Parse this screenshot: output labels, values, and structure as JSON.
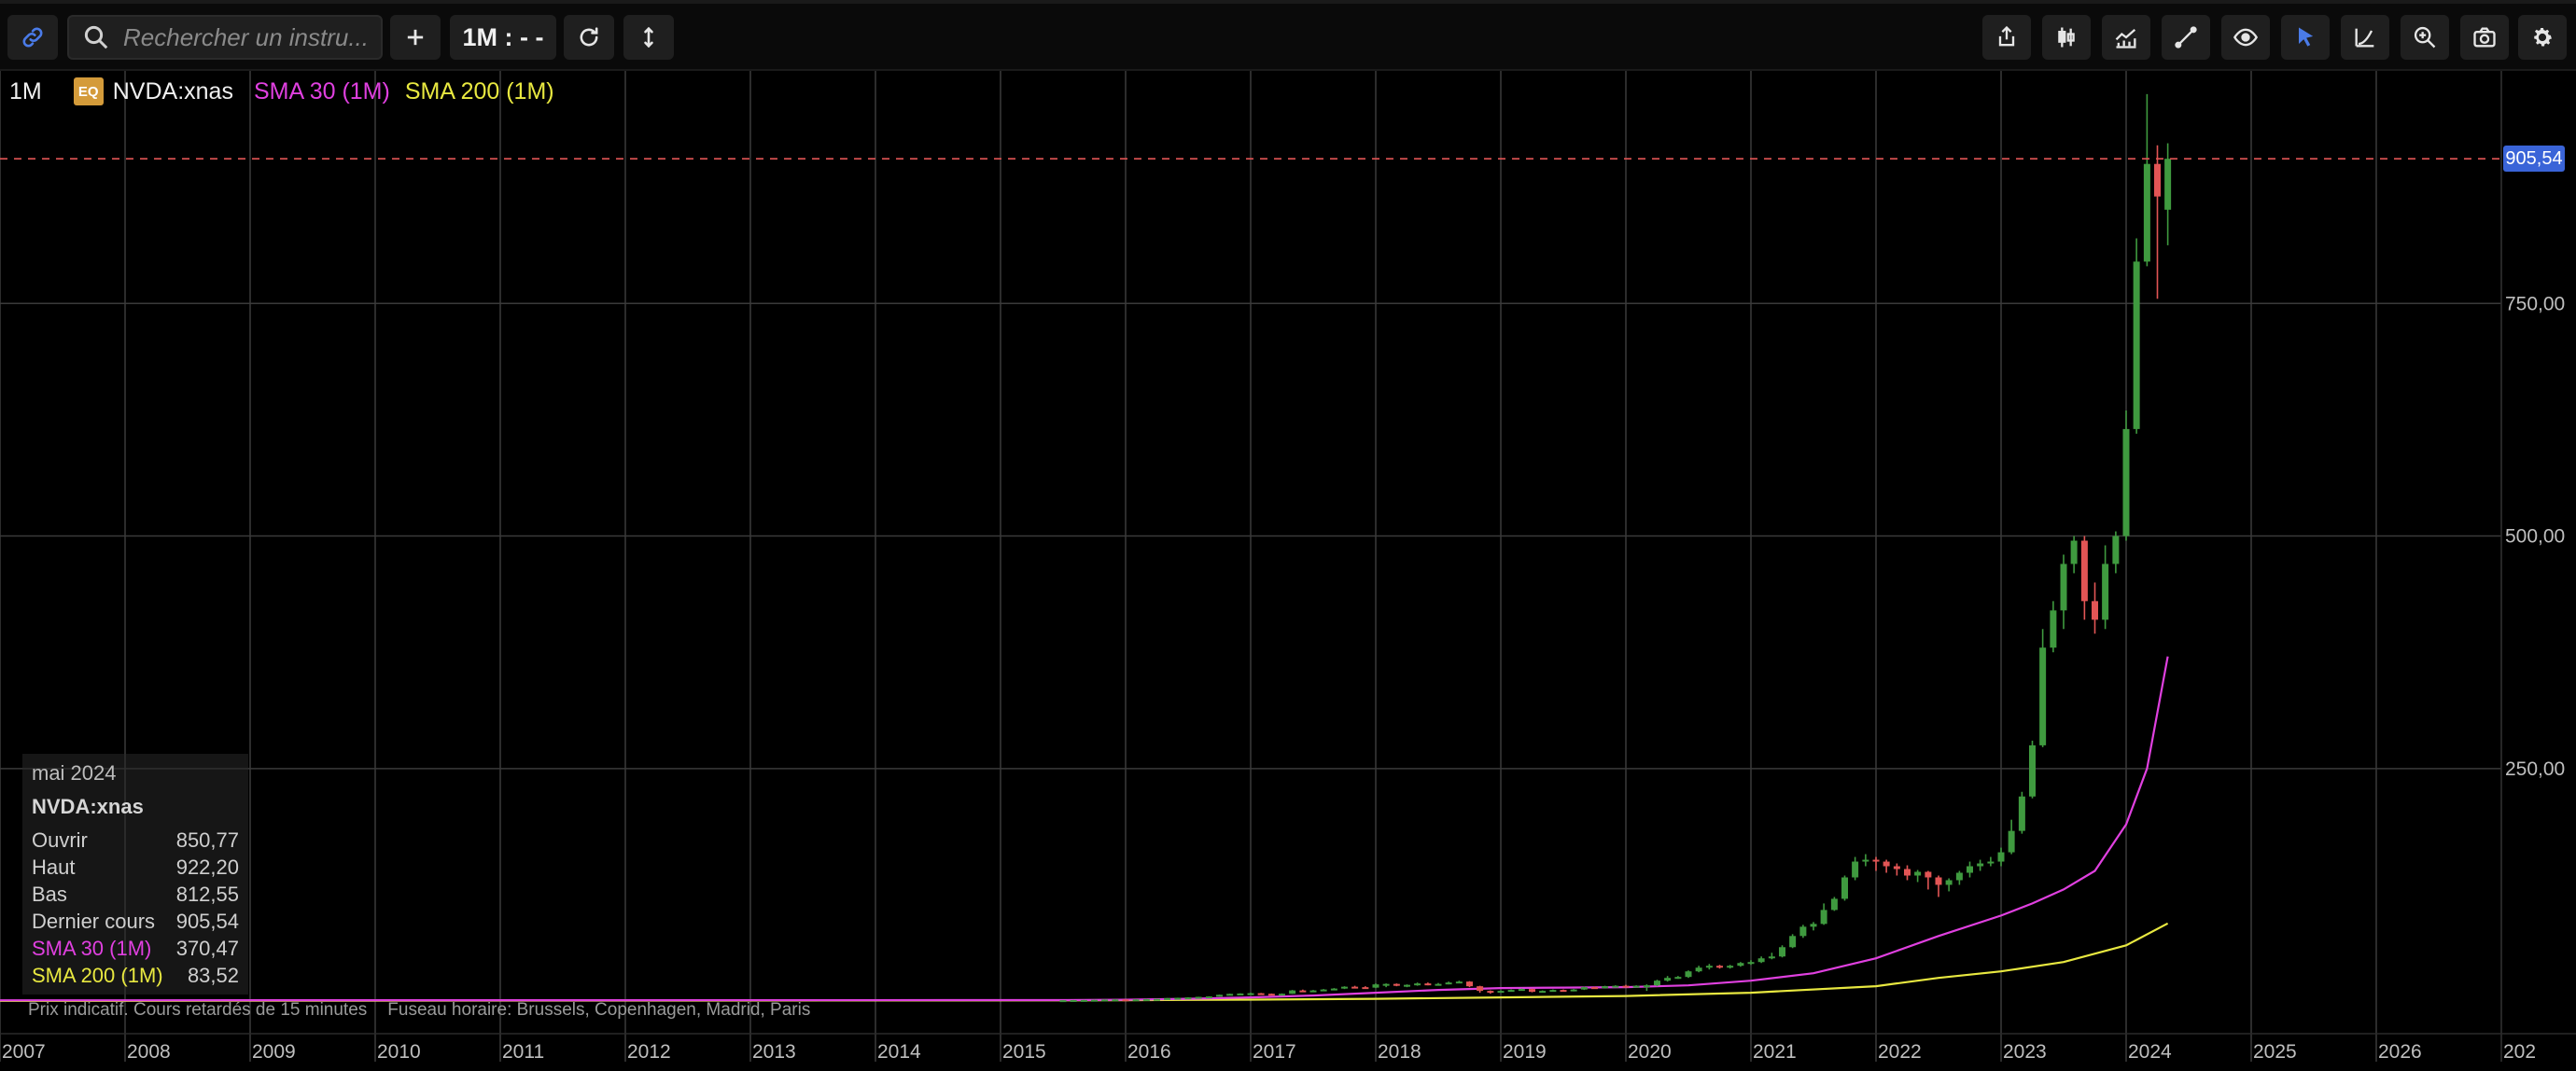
{
  "toolbar": {
    "search_placeholder": "Rechercher un instru...",
    "timeframe_label": "1M : - -",
    "add_label": "+"
  },
  "legend": {
    "timeframe": "1M",
    "badge": "EQ",
    "symbol": "NVDA:xnas",
    "sma30": "SMA 30 (1M)",
    "sma200": "SMA 200 (1M)"
  },
  "info": {
    "month": "mai 2024",
    "symbol": "NVDA:xnas",
    "rows": [
      {
        "label": "Ouvrir",
        "value": "850,77"
      },
      {
        "label": "Haut",
        "value": "922,20"
      },
      {
        "label": "Bas",
        "value": "812,55"
      },
      {
        "label": "Dernier cours",
        "value": "905,54"
      }
    ],
    "sma30": {
      "label": "SMA 30 (1M)",
      "value": "370,47"
    },
    "sma200": {
      "label": "SMA 200 (1M)",
      "value": "83,52"
    }
  },
  "footer": {
    "note": "Prix indicatif. Cours retardés de 15 minutes",
    "timezone": "Fuseau horaire: Brussels, Copenhagen, Madrid, Paris"
  },
  "colors": {
    "up": "#3f9a3f",
    "down": "#e25555",
    "sma30": "#e040e0",
    "sma200": "#e8e840",
    "last": "#3a64d8"
  },
  "chart_data": {
    "type": "candlestick",
    "x_range": [
      2007.0,
      2027.0
    ],
    "ylim": [
      -35,
      1000
    ],
    "x_tick_labels": [
      "2007",
      "2008",
      "2009",
      "2010",
      "2011",
      "2012",
      "2013",
      "2014",
      "2015",
      "2016",
      "2017",
      "2018",
      "2019",
      "2020",
      "2021",
      "2022",
      "2023",
      "2024",
      "2025",
      "2026",
      "202"
    ],
    "y_ticks": [
      250,
      500,
      750
    ],
    "y_tick_labels": [
      "250,00",
      "500,00",
      "750,00"
    ],
    "last_price": 905.54,
    "last_price_label": "905,54",
    "candles": [
      [
        2015.5,
        1,
        1,
        0.8,
        1.1
      ],
      [
        2015.583,
        1,
        1.1,
        0.9,
        1.2
      ],
      [
        2015.667,
        1.1,
        1.2,
        1,
        1.3
      ],
      [
        2015.75,
        1.2,
        1.4,
        1.1,
        1.5
      ],
      [
        2015.833,
        1.4,
        1.7,
        1.3,
        1.8
      ],
      [
        2015.917,
        1.7,
        1.8,
        1.6,
        2
      ],
      [
        2016.0,
        1.8,
        1.6,
        1.5,
        1.9
      ],
      [
        2016.083,
        1.6,
        1.9,
        1.5,
        2
      ],
      [
        2016.167,
        1.9,
        2.2,
        1.8,
        2.3
      ],
      [
        2016.25,
        2.2,
        2.4,
        2.1,
        2.5
      ],
      [
        2016.333,
        2.4,
        3.2,
        2.3,
        3.4
      ],
      [
        2016.417,
        3.2,
        3.6,
        3.1,
        3.7
      ],
      [
        2016.5,
        3.6,
        4,
        3.5,
        4.2
      ],
      [
        2016.583,
        4,
        4.6,
        3.9,
        4.7
      ],
      [
        2016.667,
        4.6,
        5,
        4.5,
        5.2
      ],
      [
        2016.75,
        5,
        6.8,
        4.9,
        7
      ],
      [
        2016.833,
        6.8,
        7.8,
        6.6,
        8
      ],
      [
        2016.917,
        7.8,
        8.2,
        7.5,
        8.4
      ],
      [
        2017.0,
        8.2,
        8.5,
        7.8,
        9
      ],
      [
        2017.083,
        8.5,
        7.9,
        7.4,
        8.8
      ],
      [
        2017.167,
        7.9,
        7.8,
        7.2,
        8.2
      ],
      [
        2017.25,
        7.8,
        7.9,
        7.4,
        8.3
      ],
      [
        2017.333,
        7.9,
        11.5,
        7.8,
        12
      ],
      [
        2017.417,
        11.5,
        11.2,
        10.2,
        12.4
      ],
      [
        2017.5,
        11.2,
        11.5,
        10.5,
        12
      ],
      [
        2017.583,
        11.5,
        12.5,
        11,
        13
      ],
      [
        2017.667,
        12.5,
        13.5,
        12,
        14
      ],
      [
        2017.75,
        13.5,
        15.5,
        13,
        16
      ],
      [
        2017.833,
        15.5,
        15,
        14,
        16.5
      ],
      [
        2017.917,
        15,
        14.5,
        13.5,
        16
      ],
      [
        2018.0,
        14.5,
        18,
        14,
        19
      ],
      [
        2018.083,
        18,
        18.5,
        15,
        19
      ],
      [
        2018.167,
        18.5,
        17,
        16,
        19
      ],
      [
        2018.25,
        17,
        17.5,
        15,
        18
      ],
      [
        2018.333,
        17.5,
        19,
        16.5,
        20
      ],
      [
        2018.417,
        19,
        18,
        17,
        20
      ],
      [
        2018.5,
        18,
        18.5,
        17,
        19.5
      ],
      [
        2018.583,
        18.5,
        20,
        18,
        21
      ],
      [
        2018.667,
        20,
        21,
        19.5,
        22
      ],
      [
        2018.75,
        21,
        16,
        15,
        21.5
      ],
      [
        2018.833,
        16,
        11,
        9,
        16.5
      ],
      [
        2018.917,
        11,
        10,
        8,
        11.5
      ],
      [
        2019.0,
        10,
        11,
        9,
        11.5
      ],
      [
        2019.083,
        11,
        12,
        10.5,
        12.5
      ],
      [
        2019.167,
        12,
        13,
        11.5,
        13.5
      ],
      [
        2019.25,
        13,
        10,
        9.5,
        13.5
      ],
      [
        2019.333,
        10,
        11,
        9.5,
        11.5
      ],
      [
        2019.417,
        11,
        12,
        10.5,
        12.5
      ],
      [
        2019.5,
        12,
        11,
        10.5,
        12.5
      ],
      [
        2019.583,
        11,
        12.5,
        10.5,
        13
      ],
      [
        2019.667,
        12.5,
        15,
        12,
        15.5
      ],
      [
        2019.75,
        15,
        14,
        13.5,
        15.5
      ],
      [
        2019.833,
        14,
        16,
        13.5,
        16.5
      ],
      [
        2019.917,
        16,
        16.5,
        15.5,
        17
      ],
      [
        2020.0,
        16.5,
        16,
        15,
        17.5
      ],
      [
        2020.083,
        16,
        16.5,
        14.5,
        17
      ],
      [
        2020.167,
        16.5,
        17,
        11,
        18
      ],
      [
        2020.25,
        17,
        22,
        16,
        23
      ],
      [
        2020.333,
        22,
        25,
        21,
        27
      ],
      [
        2020.417,
        25,
        26,
        24,
        27
      ],
      [
        2020.5,
        26,
        32,
        25,
        33
      ],
      [
        2020.583,
        32,
        36,
        31,
        38
      ],
      [
        2020.667,
        36,
        38,
        34,
        40
      ],
      [
        2020.75,
        38,
        37,
        35,
        39
      ],
      [
        2020.833,
        37,
        38,
        35,
        39
      ],
      [
        2020.917,
        38,
        41,
        37,
        42
      ],
      [
        2021.0,
        41,
        42,
        39,
        44
      ],
      [
        2021.083,
        42,
        46,
        41,
        48
      ],
      [
        2021.167,
        46,
        48,
        45,
        52
      ],
      [
        2021.25,
        48,
        58,
        47,
        60
      ],
      [
        2021.333,
        58,
        70,
        57,
        72
      ],
      [
        2021.417,
        70,
        80,
        68,
        82
      ],
      [
        2021.5,
        80,
        83,
        76,
        85
      ],
      [
        2021.583,
        83,
        98,
        82,
        105
      ],
      [
        2021.667,
        98,
        110,
        97,
        112
      ],
      [
        2021.75,
        110,
        133,
        108,
        135
      ],
      [
        2021.833,
        133,
        150,
        130,
        155
      ],
      [
        2021.917,
        150,
        152,
        145,
        158
      ],
      [
        2022.0,
        152,
        150,
        140,
        155
      ],
      [
        2022.083,
        150,
        145,
        138,
        152
      ],
      [
        2022.167,
        145,
        142,
        135,
        148
      ],
      [
        2022.25,
        142,
        135,
        130,
        146
      ],
      [
        2022.333,
        135,
        139,
        128,
        141
      ],
      [
        2022.417,
        139,
        133,
        120,
        140
      ],
      [
        2022.5,
        133,
        125,
        112,
        135
      ],
      [
        2022.583,
        125,
        130,
        118,
        132
      ],
      [
        2022.667,
        130,
        138,
        125,
        140
      ],
      [
        2022.75,
        138,
        145,
        133,
        150
      ],
      [
        2022.833,
        145,
        148,
        140,
        152
      ],
      [
        2022.917,
        148,
        150,
        145,
        155
      ],
      [
        2023.0,
        150,
        160,
        145,
        165
      ],
      [
        2023.083,
        160,
        183,
        158,
        195
      ],
      [
        2023.167,
        183,
        220,
        180,
        225
      ],
      [
        2023.25,
        220,
        275,
        218,
        280
      ],
      [
        2023.333,
        275,
        380,
        273,
        400
      ],
      [
        2023.417,
        380,
        420,
        375,
        430
      ],
      [
        2023.5,
        420,
        470,
        400,
        480
      ],
      [
        2023.583,
        470,
        495,
        460,
        500
      ],
      [
        2023.667,
        495,
        430,
        410,
        500
      ],
      [
        2023.75,
        430,
        410,
        395,
        450
      ],
      [
        2023.833,
        410,
        470,
        400,
        490
      ],
      [
        2023.917,
        470,
        500,
        460,
        505
      ],
      [
        2024.0,
        500,
        615,
        495,
        635
      ],
      [
        2024.083,
        615,
        795,
        610,
        820
      ],
      [
        2024.167,
        795,
        900,
        790,
        975
      ],
      [
        2024.25,
        900,
        865,
        755,
        920
      ],
      [
        2024.333,
        850.77,
        905.54,
        812.55,
        922.2
      ]
    ],
    "series": [
      {
        "name": "SMA 30 (1M)",
        "points": [
          [
            2007,
            0.9
          ],
          [
            2015.5,
            1.1
          ],
          [
            2016,
            1.5
          ],
          [
            2016.5,
            2.5
          ],
          [
            2017,
            4
          ],
          [
            2017.5,
            6
          ],
          [
            2018,
            9
          ],
          [
            2018.5,
            12
          ],
          [
            2019,
            14
          ],
          [
            2019.5,
            14.5
          ],
          [
            2020,
            15
          ],
          [
            2020.5,
            17
          ],
          [
            2021,
            22
          ],
          [
            2021.5,
            30
          ],
          [
            2022,
            46
          ],
          [
            2022.5,
            70
          ],
          [
            2023,
            92
          ],
          [
            2023.25,
            105
          ],
          [
            2023.5,
            120
          ],
          [
            2023.75,
            140
          ],
          [
            2024,
            190
          ],
          [
            2024.167,
            250
          ],
          [
            2024.333,
            370.47
          ]
        ]
      },
      {
        "name": "SMA 200 (1M)",
        "points": [
          [
            2007,
            0.3
          ],
          [
            2015.5,
            0.8
          ],
          [
            2016,
            1
          ],
          [
            2017,
            1.6
          ],
          [
            2018,
            2.5
          ],
          [
            2019,
            4
          ],
          [
            2020,
            5.5
          ],
          [
            2021,
            9
          ],
          [
            2022,
            16
          ],
          [
            2022.5,
            25
          ],
          [
            2023,
            32
          ],
          [
            2023.5,
            42
          ],
          [
            2024,
            60
          ],
          [
            2024.333,
            83.52
          ]
        ]
      }
    ]
  }
}
